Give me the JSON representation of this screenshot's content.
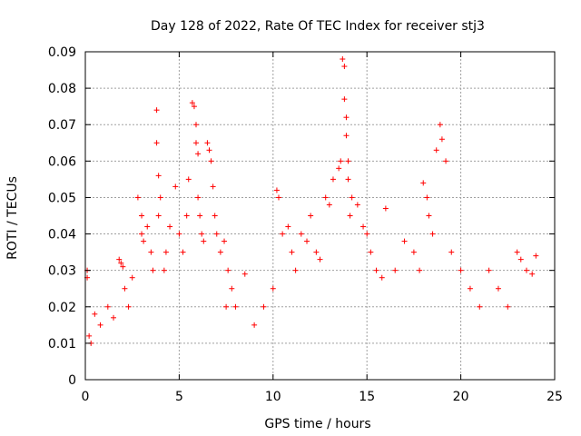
{
  "chart_data": {
    "type": "scatter",
    "title": "Day 128 of 2022, Rate Of TEC Index for receiver stj3",
    "xlabel": "GPS time / hours",
    "ylabel": "ROTI / TECUs",
    "xlim": [
      0,
      25
    ],
    "ylim": [
      0,
      0.09
    ],
    "x_ticks": [
      "0",
      "5",
      "10",
      "15",
      "20",
      "25"
    ],
    "y_ticks": [
      "0",
      "0.01",
      "0.02",
      "0.03",
      "0.04",
      "0.05",
      "0.06",
      "0.07",
      "0.08",
      "0.09"
    ],
    "grid": true,
    "marker": "plus",
    "color": "#ff0000",
    "series": [
      {
        "x": [
          0.1,
          0.1,
          0.2,
          0.3,
          0.5,
          0.8,
          1.2,
          1.5,
          1.8,
          1.9,
          2.0,
          2.1,
          2.3,
          2.5,
          2.8,
          3.0,
          3.0,
          3.1,
          3.3,
          3.5,
          3.6,
          3.8,
          3.8,
          3.9,
          3.9,
          4.0,
          4.2,
          4.3,
          4.5,
          4.8,
          5.0,
          5.2,
          5.4,
          5.5,
          5.7,
          5.8,
          5.9,
          5.9,
          6.0,
          6.0,
          6.1,
          6.2,
          6.3,
          6.5,
          6.6,
          6.7,
          6.8,
          6.9,
          7.0,
          7.2,
          7.4,
          7.5,
          7.6,
          7.8,
          8.0,
          8.5,
          9.0,
          9.5,
          10.0,
          10.2,
          10.3,
          10.5,
          10.8,
          11.0,
          11.2,
          11.5,
          11.8,
          12.0,
          12.3,
          12.5,
          12.8,
          13.0,
          13.2,
          13.5,
          13.6,
          13.7,
          13.8,
          13.8,
          13.9,
          13.9,
          14.0,
          14.0,
          14.1,
          14.2,
          14.5,
          14.8,
          15.0,
          15.2,
          15.5,
          15.8,
          16.0,
          16.5,
          17.0,
          17.5,
          17.8,
          18.0,
          18.2,
          18.3,
          18.5,
          18.7,
          18.9,
          19.0,
          19.2,
          19.5,
          20.0,
          20.5,
          21.0,
          21.5,
          22.0,
          22.5,
          23.0,
          23.2,
          23.5,
          23.8,
          24.0
        ],
        "y": [
          0.028,
          0.03,
          0.012,
          0.01,
          0.018,
          0.015,
          0.02,
          0.017,
          0.033,
          0.032,
          0.031,
          0.025,
          0.02,
          0.028,
          0.05,
          0.04,
          0.045,
          0.038,
          0.042,
          0.035,
          0.03,
          0.074,
          0.065,
          0.045,
          0.056,
          0.05,
          0.03,
          0.035,
          0.042,
          0.053,
          0.04,
          0.035,
          0.045,
          0.055,
          0.076,
          0.075,
          0.07,
          0.065,
          0.062,
          0.05,
          0.045,
          0.04,
          0.038,
          0.065,
          0.063,
          0.06,
          0.053,
          0.045,
          0.04,
          0.035,
          0.038,
          0.02,
          0.03,
          0.025,
          0.02,
          0.029,
          0.015,
          0.02,
          0.025,
          0.052,
          0.05,
          0.04,
          0.042,
          0.035,
          0.03,
          0.04,
          0.038,
          0.045,
          0.035,
          0.033,
          0.05,
          0.048,
          0.055,
          0.058,
          0.06,
          0.088,
          0.086,
          0.077,
          0.072,
          0.067,
          0.06,
          0.055,
          0.045,
          0.05,
          0.048,
          0.042,
          0.04,
          0.035,
          0.03,
          0.028,
          0.047,
          0.03,
          0.038,
          0.035,
          0.03,
          0.054,
          0.05,
          0.045,
          0.04,
          0.063,
          0.07,
          0.066,
          0.06,
          0.035,
          0.03,
          0.025,
          0.02,
          0.03,
          0.025,
          0.02,
          0.035,
          0.033,
          0.03,
          0.029,
          0.034
        ]
      }
    ]
  }
}
